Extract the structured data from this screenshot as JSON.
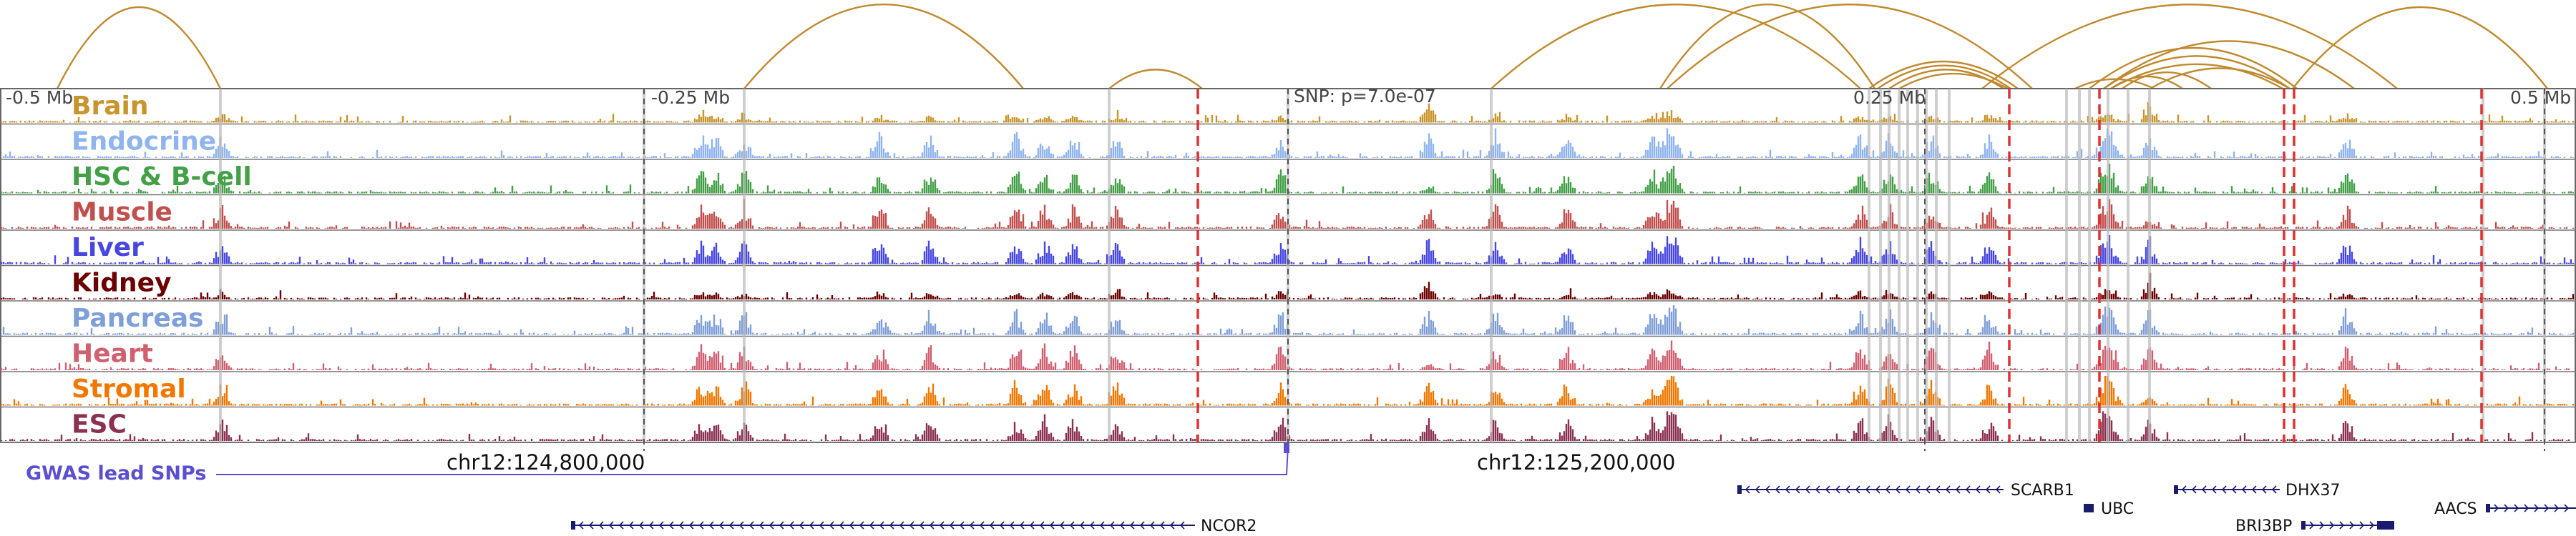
{
  "region": {
    "ticks": [
      {
        "label": "-0.5 Mb",
        "pos": -0.5
      },
      {
        "label": "-0.25 Mb",
        "pos": -0.25
      },
      {
        "label": "0.25 Mb",
        "pos": 0.25
      },
      {
        "label": "0.5 Mb",
        "pos": 0.5
      }
    ],
    "center_label": "SNP: p=7.0e-07",
    "coord_labels": [
      "chr12:124,800,000",
      "chr12:125,200,000"
    ]
  },
  "tracks": [
    {
      "name": "Brain",
      "color": "#c8942b"
    },
    {
      "name": "Endocrine",
      "color": "#8fb4ee"
    },
    {
      "name": "HSC & B-cell",
      "color": "#43a047"
    },
    {
      "name": "Muscle",
      "color": "#c0504d"
    },
    {
      "name": "Liver",
      "color": "#4646e0"
    },
    {
      "name": "Kidney",
      "color": "#6b0000"
    },
    {
      "name": "Pancreas",
      "color": "#7f9fd8"
    },
    {
      "name": "Heart",
      "color": "#d06070"
    },
    {
      "name": "Stromal",
      "color": "#f07800"
    },
    {
      "name": "ESC",
      "color": "#8b3050"
    }
  ],
  "gwas_label": "GWAS lead SNPs",
  "genes": [
    {
      "name": "SCARB1",
      "strand": "-"
    },
    {
      "name": "UBC",
      "strand": "-"
    },
    {
      "name": "DHX37",
      "strand": "-"
    },
    {
      "name": "AACS",
      "strand": "+"
    },
    {
      "name": "NCOR2",
      "strand": "-"
    },
    {
      "name": "BRI3BP",
      "strand": "+"
    }
  ],
  "colors": {
    "arc": "#c08a2e",
    "marker_red": "#e03030",
    "gwas": "#5a4fcf",
    "gene": "#1a1a6e"
  }
}
